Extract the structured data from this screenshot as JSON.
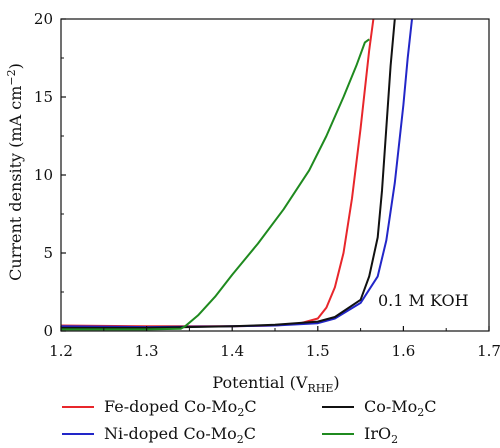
{
  "chart_data": {
    "type": "line",
    "xlabel_main": "Potential (V",
    "xlabel_sub": "RHE",
    "xlabel_end": ")",
    "ylabel_main": "Current density (mA cm",
    "ylabel_sup": "−2",
    "ylabel_end": ")",
    "xlim": [
      1.2,
      1.7
    ],
    "ylim": [
      0,
      20
    ],
    "x_ticks": [
      1.2,
      1.3,
      1.4,
      1.5,
      1.6,
      1.7
    ],
    "x_tick_labels": [
      "1.2",
      "1.3",
      "1.4",
      "1.5",
      "1.6",
      "1.7"
    ],
    "y_ticks": [
      0,
      5,
      10,
      15,
      20
    ],
    "y_tick_labels": [
      "0",
      "5",
      "10",
      "15",
      "20"
    ],
    "annotation": "0.1 M KOH",
    "series": [
      {
        "name_main": "Fe-doped Co-Mo",
        "name_sub": "2",
        "name_end": "C",
        "color": "#e8262b",
        "x": [
          1.2,
          1.3,
          1.4,
          1.45,
          1.48,
          1.5,
          1.51,
          1.52,
          1.53,
          1.54,
          1.55,
          1.56,
          1.565
        ],
        "y": [
          0.35,
          0.3,
          0.3,
          0.35,
          0.5,
          0.8,
          1.5,
          2.8,
          5.0,
          8.5,
          13.0,
          18.0,
          20.0
        ]
      },
      {
        "name_main": "Ni-doped Co-Mo",
        "name_sub": "2",
        "name_end": "C",
        "color": "#2226c8",
        "x": [
          1.2,
          1.3,
          1.4,
          1.45,
          1.5,
          1.52,
          1.55,
          1.57,
          1.58,
          1.59,
          1.6,
          1.605,
          1.61
        ],
        "y": [
          0.3,
          0.25,
          0.3,
          0.35,
          0.5,
          0.8,
          1.8,
          3.5,
          5.8,
          9.5,
          14.5,
          17.5,
          20.0
        ]
      },
      {
        "name_main": "Co-Mo",
        "name_sub": "2",
        "name_end": "C",
        "color": "#111111",
        "x": [
          1.2,
          1.3,
          1.4,
          1.45,
          1.5,
          1.52,
          1.55,
          1.56,
          1.57,
          1.575,
          1.58,
          1.585,
          1.59
        ],
        "y": [
          0.2,
          0.2,
          0.3,
          0.4,
          0.6,
          0.9,
          2.0,
          3.5,
          6.0,
          9.0,
          13.0,
          17.0,
          20.0
        ]
      },
      {
        "name_main": "IrO",
        "name_sub": "2",
        "name_end": "",
        "color": "#1f8a1f",
        "x": [
          1.2,
          1.3,
          1.34,
          1.345,
          1.36,
          1.38,
          1.4,
          1.43,
          1.46,
          1.49,
          1.51,
          1.53,
          1.545,
          1.555,
          1.56
        ],
        "y": [
          0.1,
          0.1,
          0.15,
          0.3,
          1.0,
          2.2,
          3.6,
          5.6,
          7.8,
          10.3,
          12.5,
          15.0,
          17.0,
          18.5,
          18.7
        ]
      }
    ]
  }
}
